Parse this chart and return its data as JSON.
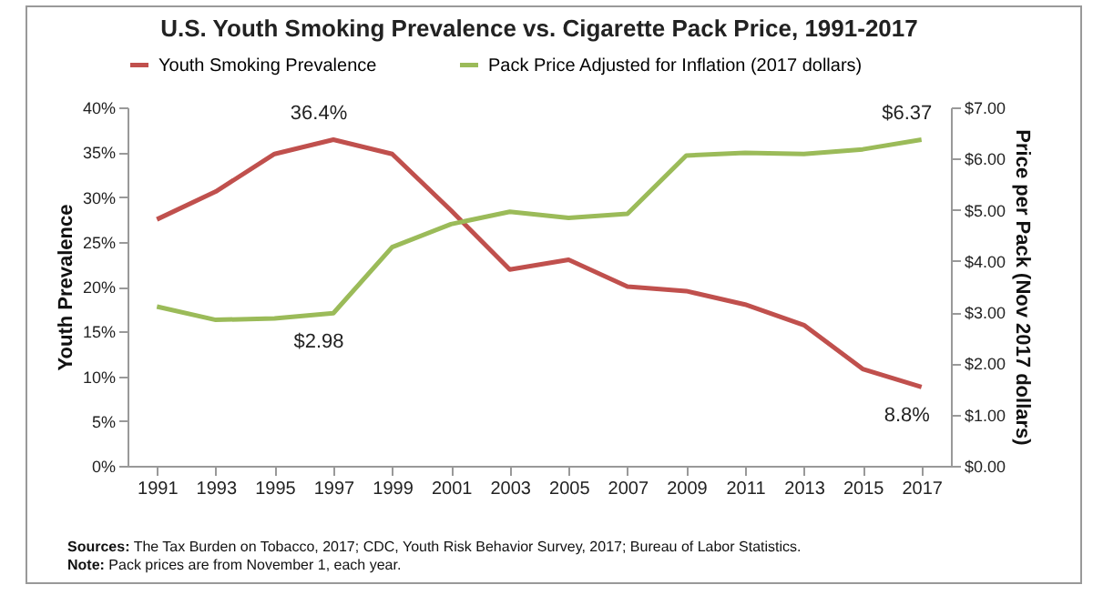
{
  "chart_data": {
    "type": "line",
    "title": "U.S. Youth Smoking Prevalence vs. Cigarette Pack Price, 1991-2017",
    "ylabel": "Youth Prevalence",
    "y2label": "Price per Pack (Nov 2017 dollars)",
    "categories": [
      "1991",
      "1993",
      "1995",
      "1997",
      "1999",
      "2001",
      "2003",
      "2005",
      "2007",
      "2009",
      "2011",
      "2013",
      "2015",
      "2017"
    ],
    "series": [
      {
        "name": "Youth Smoking Prevalence",
        "color": "#c0504d",
        "values": [
          27.5,
          30.6,
          34.8,
          36.4,
          34.8,
          28.5,
          21.9,
          23.0,
          20.0,
          19.5,
          18.0,
          15.7,
          10.8,
          8.8
        ],
        "value_labels": [
          null,
          null,
          null,
          "36.4%",
          null,
          null,
          null,
          null,
          null,
          null,
          null,
          null,
          null,
          "8.8%"
        ]
      },
      {
        "name": "Pack Price Adjusted for Inflation (2017 dollars)",
        "color": "#9bbb59",
        "axis": "y2",
        "values": [
          3.11,
          2.85,
          2.88,
          2.98,
          4.27,
          4.72,
          4.96,
          4.84,
          4.92,
          6.06,
          6.11,
          6.09,
          6.18,
          6.37
        ],
        "value_labels": [
          null,
          null,
          null,
          "$2.98",
          null,
          null,
          null,
          null,
          null,
          null,
          null,
          null,
          null,
          "$6.37"
        ]
      }
    ],
    "ylim": [
      0,
      40
    ],
    "yticks": [
      {
        "value": 0,
        "label": "0%"
      },
      {
        "value": 5,
        "label": "5%"
      },
      {
        "value": 10,
        "label": "10%"
      },
      {
        "value": 15,
        "label": "15%"
      },
      {
        "value": 20,
        "label": "20%"
      },
      {
        "value": 25,
        "label": "25%"
      },
      {
        "value": 30,
        "label": "30%"
      },
      {
        "value": 35,
        "label": "35%"
      },
      {
        "value": 40,
        "label": "40%"
      }
    ],
    "y2lim": [
      0,
      7
    ],
    "y2ticks": [
      {
        "value": 0,
        "label": "$0.00"
      },
      {
        "value": 1,
        "label": "$1.00"
      },
      {
        "value": 2,
        "label": "$2.00"
      },
      {
        "value": 3,
        "label": "$3.00"
      },
      {
        "value": 4,
        "label": "$4.00"
      },
      {
        "value": 5,
        "label": "$5.00"
      },
      {
        "value": 6,
        "label": "$6.00"
      },
      {
        "value": 7,
        "label": "$7.00"
      }
    ],
    "grid": false,
    "legend": "top",
    "annotations": [
      "Sources: The Tax Burden on Tobacco, 2017; CDC, Youth Risk Behavior Survey, 2017; Bureau of Labor Statistics.",
      "Note: Pack prices are from November 1, each year."
    ]
  }
}
